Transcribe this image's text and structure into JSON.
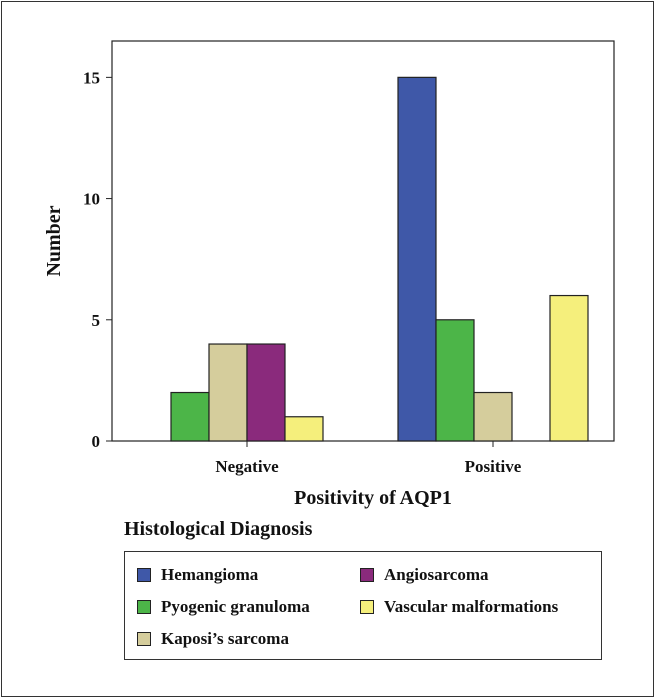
{
  "chart_data": {
    "type": "bar",
    "title": "",
    "xlabel": "Positivity of AQP1",
    "ylabel": "Number",
    "categories": [
      "Negative",
      "Positive"
    ],
    "ylim": [
      0,
      16.5
    ],
    "yticks": [
      0,
      5,
      10,
      15
    ],
    "grid": false,
    "legend_title": "Histological Diagnosis",
    "legend_position": "bottom",
    "series": [
      {
        "name": "Hemangioma",
        "color": "#3f58a8",
        "values": [
          0,
          15
        ]
      },
      {
        "name": "Pyogenic granuloma",
        "color": "#4cb548",
        "values": [
          2,
          5
        ]
      },
      {
        "name": "Kaposi’s sarcoma",
        "color": "#d5cd9c",
        "values": [
          4,
          2
        ]
      },
      {
        "name": "Angiosarcoma",
        "color": "#8a2a7c",
        "values": [
          4,
          0
        ]
      },
      {
        "name": "Vascular malformations",
        "color": "#f5ef7c",
        "values": [
          1,
          6
        ]
      }
    ]
  }
}
